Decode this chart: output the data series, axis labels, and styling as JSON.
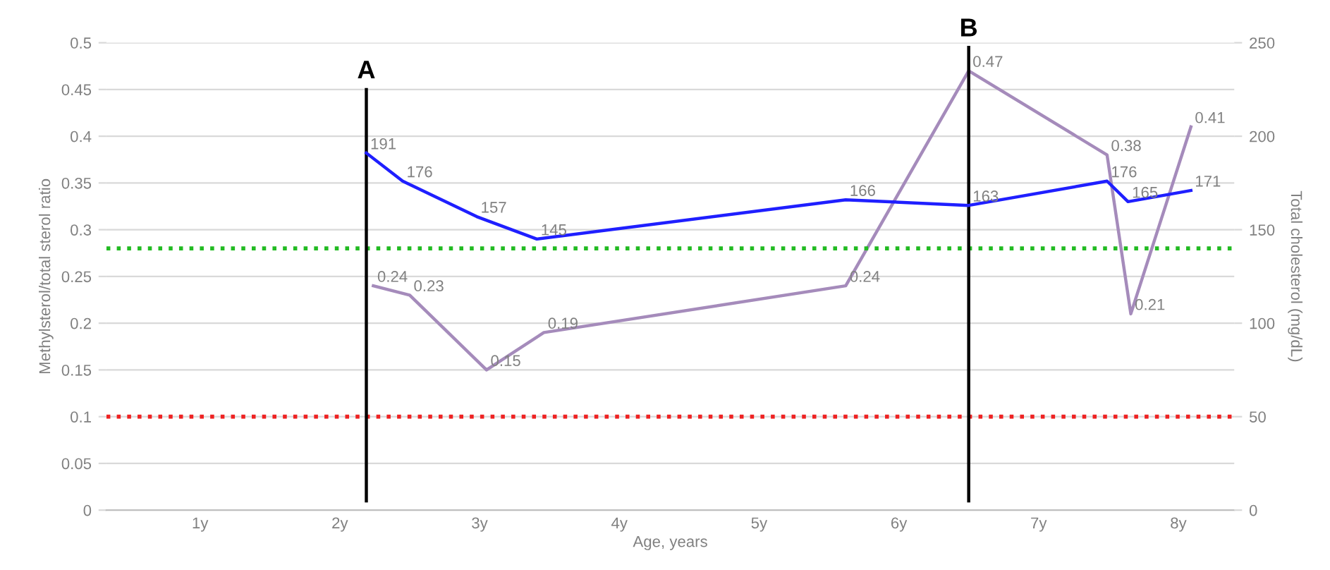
{
  "chart_data": {
    "type": "line",
    "xlabel": "Age, years",
    "ylabel": "Methylsterol/total sterol ratio",
    "y2label": "Total cholesterol (mg/dL)",
    "xlim": [
      0.33,
      8.4
    ],
    "xticks": [
      {
        "value": 1,
        "label": "1y"
      },
      {
        "value": 2,
        "label": "2y"
      },
      {
        "value": 3,
        "label": "3y"
      },
      {
        "value": 4,
        "label": "4y"
      },
      {
        "value": 5,
        "label": "5y"
      },
      {
        "value": 6,
        "label": "6y"
      },
      {
        "value": 7,
        "label": "7y"
      },
      {
        "value": 8,
        "label": "8y"
      }
    ],
    "ylim": [
      0,
      0.5
    ],
    "yticks": [
      0,
      0.05,
      0.1,
      0.15,
      0.2,
      0.25,
      0.3,
      0.35,
      0.4,
      0.45,
      0.5
    ],
    "y2lim": [
      0,
      250
    ],
    "y2ticks": [
      0,
      50,
      100,
      150,
      200,
      250
    ],
    "grid": "y",
    "data_labels": true,
    "marker": "none",
    "line_style": "solid",
    "series": [
      {
        "color": "#a58bbb",
        "x": [
          2.24,
          2.5,
          3.05,
          3.46,
          5.62,
          6.5,
          7.49,
          7.66,
          8.09
        ],
        "values": [
          0.24,
          0.23,
          0.15,
          0.19,
          0.24,
          0.47,
          0.38,
          0.21,
          0.41
        ]
      },
      {
        "color": "#1f1fff",
        "axis": "y2",
        "x": [
          2.19,
          2.45,
          2.98,
          3.41,
          5.62,
          6.5,
          7.49,
          7.64,
          8.09
        ],
        "values": [
          191,
          176,
          157,
          145,
          166,
          163,
          176,
          165,
          171
        ]
      }
    ],
    "ref_lines": [
      {
        "axis": "y",
        "value": 0.28,
        "color": "#22bb22",
        "line_style": "dotted"
      },
      {
        "axis": "y",
        "value": 0.1,
        "color": "#ee2222",
        "line_style": "dotted"
      },
      {
        "axis": "x",
        "value": 2.19,
        "label": "A",
        "color": "#000000",
        "line_style": "solid"
      },
      {
        "axis": "x",
        "value": 6.5,
        "label": "B",
        "color": "#000000",
        "line_style": "solid"
      }
    ]
  }
}
